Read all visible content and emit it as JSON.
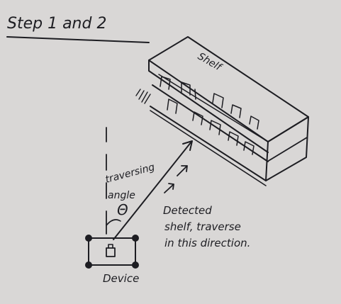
{
  "title": "Step 1 and 2",
  "shelf_label": "Shelf",
  "traversing_label_1": "traversing",
  "traversing_label_2": "angle",
  "theta_symbol": "Θ",
  "detected_line_1": "Detected",
  "detected_line_2": "shelf, traverse",
  "detected_line_3": "in this direction.",
  "device_label": "Device",
  "colors": {
    "paper": "#d9d7d6",
    "ink": "#1d1d22"
  }
}
